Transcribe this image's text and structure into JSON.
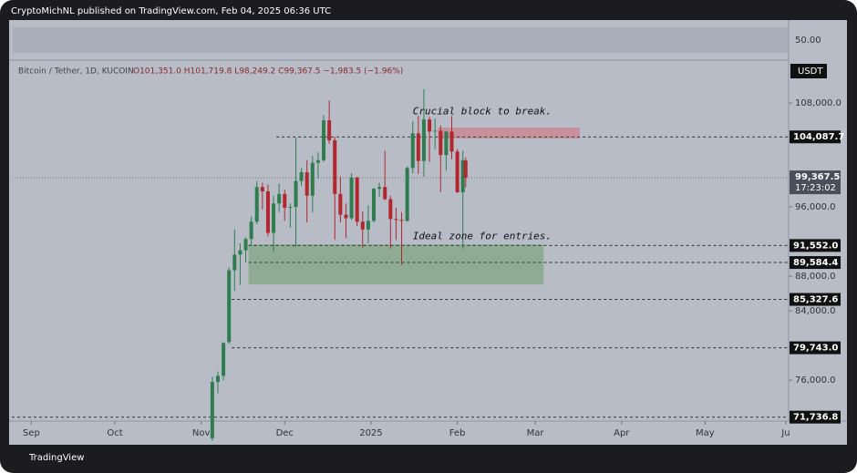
{
  "header": {
    "publisher": "CryptoMichNL published on TradingView.com, Feb 04, 2025 06:36 UTC",
    "footer": "TradingView"
  },
  "chart_data": {
    "type": "candlestick",
    "symbol": "Bitcoin / Tether, 1D, KUCOIN",
    "ohlc_text": "O101,351.0 H101,719.8 L98,249.2 C99,367.5 −1,983.5 (−1.96%)",
    "currency": "USDT",
    "rsi_label": "50.00",
    "countdown": "17:23:02",
    "up_color": "#2f7d4f",
    "down_color": "#b3262e",
    "xlim": [
      "2024-08-25",
      "2025-05-31"
    ],
    "xticks": [
      {
        "value": "2024-09-01",
        "label": "Sep"
      },
      {
        "value": "2024-10-01",
        "label": "Oct"
      },
      {
        "value": "2024-11-01",
        "label": "Nov"
      },
      {
        "value": "2024-12-01",
        "label": "Dec"
      },
      {
        "value": "2025-01-01",
        "label": "2025"
      },
      {
        "value": "2025-02-01",
        "label": "Feb"
      },
      {
        "value": "2025-03-01",
        "label": "Mar"
      },
      {
        "value": "2025-04-01",
        "label": "Apr"
      },
      {
        "value": "2025-05-01",
        "label": "May"
      },
      {
        "value": "2025-05-30",
        "label": "Ju"
      }
    ],
    "ylim": [
      71600,
      112000
    ],
    "yticks": [
      {
        "value": 108000,
        "label": "108,000.0"
      },
      {
        "value": 96000,
        "label": "96,000.0"
      },
      {
        "value": 88000,
        "label": "88,000.0"
      },
      {
        "value": 84000,
        "label": "84,000.0"
      },
      {
        "value": 76000,
        "label": "76,000.0"
      }
    ],
    "levels": [
      {
        "value": 104087.7,
        "label": "104,087.7",
        "start": "2024-11-28"
      },
      {
        "value": 91552,
        "label": "91,552.0",
        "start": "2024-11-18"
      },
      {
        "value": 89584.4,
        "label": "89,584.4",
        "start": "2024-11-18"
      },
      {
        "value": 85327.6,
        "label": "85,327.6",
        "start": "2024-11-12"
      },
      {
        "value": 79743,
        "label": "79,743.0",
        "start": "2024-11-12"
      },
      {
        "value": 71736.8,
        "label": "71,736.8",
        "start": "2024-08-25"
      }
    ],
    "last_price": {
      "value": 99367.5,
      "label": "99,367.5"
    },
    "zones": [
      {
        "color": "#c98a93",
        "top": 105160,
        "bottom": 103900,
        "start": "2025-01-25",
        "end": "2025-03-17"
      },
      {
        "color": "#86a98a",
        "top": 91684,
        "bottom": 87053,
        "start": "2024-11-18",
        "end": "2025-03-04"
      }
    ],
    "annotations": [
      {
        "text": "Crucial block to break.",
        "date": "2025-01-16",
        "price": 107000
      },
      {
        "text": "Ideal zone for entries.",
        "date": "2025-01-16",
        "price": 92600
      }
    ],
    "candles": [
      {
        "t": "2024-11-05",
        "o": 69300,
        "h": 76400,
        "l": 69000,
        "c": 75800
      },
      {
        "t": "2024-11-07",
        "o": 75800,
        "h": 77000,
        "l": 74500,
        "c": 76500
      },
      {
        "t": "2024-11-09",
        "o": 76500,
        "h": 80400,
        "l": 76000,
        "c": 80300
      },
      {
        "t": "2024-11-11",
        "o": 80400,
        "h": 89000,
        "l": 80200,
        "c": 88700
      },
      {
        "t": "2024-11-13",
        "o": 88700,
        "h": 93400,
        "l": 86300,
        "c": 90500
      },
      {
        "t": "2024-11-15",
        "o": 90500,
        "h": 91800,
        "l": 87000,
        "c": 91000
      },
      {
        "t": "2024-11-17",
        "o": 91000,
        "h": 92500,
        "l": 89600,
        "c": 92300
      },
      {
        "t": "2024-11-19",
        "o": 92300,
        "h": 94900,
        "l": 91500,
        "c": 94300
      },
      {
        "t": "2024-11-21",
        "o": 94300,
        "h": 99000,
        "l": 94000,
        "c": 98300
      },
      {
        "t": "2024-11-23",
        "o": 98300,
        "h": 98800,
        "l": 95700,
        "c": 97800
      },
      {
        "t": "2024-11-25",
        "o": 97800,
        "h": 98600,
        "l": 92600,
        "c": 93000
      },
      {
        "t": "2024-11-27",
        "o": 93000,
        "h": 97300,
        "l": 90800,
        "c": 96400
      },
      {
        "t": "2024-11-29",
        "o": 96400,
        "h": 98700,
        "l": 95400,
        "c": 97500
      },
      {
        "t": "2024-12-01",
        "o": 97500,
        "h": 98000,
        "l": 94400,
        "c": 95900
      },
      {
        "t": "2024-12-03",
        "o": 95900,
        "h": 96400,
        "l": 93600,
        "c": 96000
      },
      {
        "t": "2024-12-05",
        "o": 96000,
        "h": 104000,
        "l": 91400,
        "c": 99000
      },
      {
        "t": "2024-12-07",
        "o": 99000,
        "h": 100500,
        "l": 98400,
        "c": 100000
      },
      {
        "t": "2024-12-09",
        "o": 100000,
        "h": 101400,
        "l": 94200,
        "c": 97300
      },
      {
        "t": "2024-12-11",
        "o": 97300,
        "h": 101900,
        "l": 95400,
        "c": 101100
      },
      {
        "t": "2024-12-13",
        "o": 101100,
        "h": 102300,
        "l": 99300,
        "c": 101400
      },
      {
        "t": "2024-12-15",
        "o": 101400,
        "h": 106600,
        "l": 101200,
        "c": 106000
      },
      {
        "t": "2024-12-17",
        "o": 106000,
        "h": 108300,
        "l": 103300,
        "c": 103700
      },
      {
        "t": "2024-12-19",
        "o": 103700,
        "h": 104100,
        "l": 92200,
        "c": 97500
      },
      {
        "t": "2024-12-21",
        "o": 97500,
        "h": 99500,
        "l": 94200,
        "c": 95100
      },
      {
        "t": "2024-12-23",
        "o": 95100,
        "h": 96400,
        "l": 92400,
        "c": 94700
      },
      {
        "t": "2024-12-25",
        "o": 94700,
        "h": 99900,
        "l": 94500,
        "c": 99400
      },
      {
        "t": "2024-12-27",
        "o": 99400,
        "h": 99500,
        "l": 93800,
        "c": 94300
      },
      {
        "t": "2024-12-29",
        "o": 94300,
        "h": 95500,
        "l": 91300,
        "c": 93400
      },
      {
        "t": "2024-12-31",
        "o": 93400,
        "h": 96200,
        "l": 91800,
        "c": 94400
      },
      {
        "t": "2025-01-02",
        "o": 94400,
        "h": 98200,
        "l": 94200,
        "c": 98100
      },
      {
        "t": "2025-01-04",
        "o": 98100,
        "h": 98800,
        "l": 97200,
        "c": 98300
      },
      {
        "t": "2025-01-06",
        "o": 98300,
        "h": 102500,
        "l": 96800,
        "c": 96900
      },
      {
        "t": "2025-01-08",
        "o": 96900,
        "h": 97300,
        "l": 91200,
        "c": 94600
      },
      {
        "t": "2025-01-10",
        "o": 94600,
        "h": 95900,
        "l": 92200,
        "c": 94500
      },
      {
        "t": "2025-01-12",
        "o": 94500,
        "h": 95400,
        "l": 89300,
        "c": 94400
      },
      {
        "t": "2025-01-14",
        "o": 94400,
        "h": 100700,
        "l": 94300,
        "c": 100500
      },
      {
        "t": "2025-01-16",
        "o": 100500,
        "h": 105900,
        "l": 99900,
        "c": 104500
      },
      {
        "t": "2025-01-18",
        "o": 104500,
        "h": 106500,
        "l": 99800,
        "c": 101300
      },
      {
        "t": "2025-01-20",
        "o": 101300,
        "h": 109600,
        "l": 99500,
        "c": 106100
      },
      {
        "t": "2025-01-22",
        "o": 106100,
        "h": 106400,
        "l": 101200,
        "c": 104700
      },
      {
        "t": "2025-01-24",
        "o": 104700,
        "h": 106200,
        "l": 102700,
        "c": 104800
      },
      {
        "t": "2025-01-26",
        "o": 104800,
        "h": 105400,
        "l": 97700,
        "c": 102000
      },
      {
        "t": "2025-01-28",
        "o": 102000,
        "h": 104800,
        "l": 100200,
        "c": 104700
      },
      {
        "t": "2025-01-30",
        "o": 104700,
        "h": 106500,
        "l": 101500,
        "c": 102400
      },
      {
        "t": "2025-02-01",
        "o": 102400,
        "h": 102700,
        "l": 97600,
        "c": 97700
      },
      {
        "t": "2025-02-03",
        "o": 97700,
        "h": 102500,
        "l": 91200,
        "c": 101400
      },
      {
        "t": "2025-02-04",
        "o": 101351,
        "h": 101719.8,
        "l": 98249.2,
        "c": 99367.5
      }
    ]
  }
}
